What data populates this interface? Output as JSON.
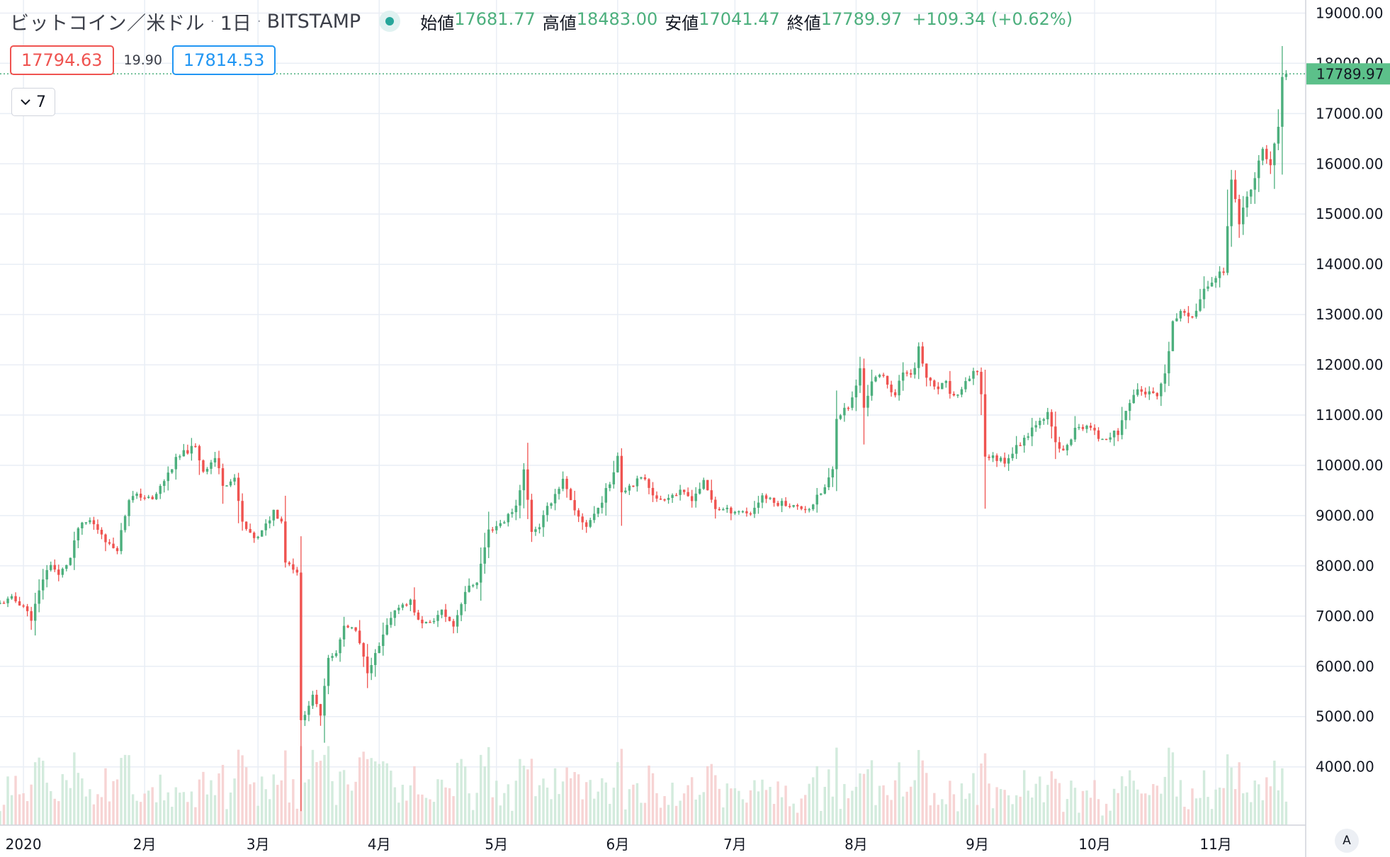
{
  "header": {
    "symbol": "ビットコイン／米ドル",
    "interval": "1日",
    "exchange": "BITSTAMP",
    "open_label": "始値",
    "open": "17681.77",
    "high_label": "高値",
    "high": "18483.00",
    "low_label": "安値",
    "low": "17041.47",
    "close_label": "終値",
    "close": "17789.97",
    "change": "+109.34 (+0.62%)"
  },
  "trade": {
    "sell": "17794.63",
    "spread": "19.90",
    "buy": "17814.53"
  },
  "indicators_toggle": {
    "count": "7",
    "icon": "chevron-down-icon"
  },
  "scale_button": {
    "label": "A"
  },
  "colors": {
    "up": "#4caf7d",
    "down": "#ef5350",
    "grid": "#e9eef5",
    "last_price_bg": "#5cc08a"
  },
  "chart_data": {
    "type": "candlestick",
    "title": "",
    "y_ticks": [
      "19000.00",
      "18000.00",
      "17000.00",
      "16000.00",
      "15000.00",
      "14000.00",
      "13000.00",
      "12000.00",
      "11000.00",
      "10000.00",
      "9000.00",
      "8000.00",
      "7000.00",
      "6000.00",
      "5000.00",
      "4000.00"
    ],
    "x_labels": [
      {
        "label": "2020",
        "date": "2020-01-01"
      },
      {
        "label": "2月",
        "date": "2020-02-01"
      },
      {
        "label": "3月",
        "date": "2020-03-01"
      },
      {
        "label": "4月",
        "date": "2020-04-01"
      },
      {
        "label": "5月",
        "date": "2020-05-01"
      },
      {
        "label": "6月",
        "date": "2020-06-01"
      },
      {
        "label": "7月",
        "date": "2020-07-01"
      },
      {
        "label": "8月",
        "date": "2020-08-01"
      },
      {
        "label": "9月",
        "date": "2020-09-01"
      },
      {
        "label": "10月",
        "date": "2020-10-01"
      },
      {
        "label": "11月",
        "date": "2020-11-01"
      }
    ],
    "x_range": [
      "2019-12-26",
      "2020-11-24"
    ],
    "y_range": [
      2840,
      19260
    ],
    "grid": true,
    "last_price": "17789.97",
    "price_path": [
      {
        "date": "2019-12-26",
        "close": 7250
      },
      {
        "date": "2019-12-29",
        "close": 7350
      },
      {
        "date": "2020-01-01",
        "close": 7200
      },
      {
        "date": "2020-01-03",
        "close": 6950
      },
      {
        "date": "2020-01-06",
        "close": 7750
      },
      {
        "date": "2020-01-08",
        "close": 8050
      },
      {
        "date": "2020-01-10",
        "close": 7800
      },
      {
        "date": "2020-01-13",
        "close": 8150
      },
      {
        "date": "2020-01-15",
        "close": 8750
      },
      {
        "date": "2020-01-18",
        "close": 8900
      },
      {
        "date": "2020-01-21",
        "close": 8650
      },
      {
        "date": "2020-01-23",
        "close": 8400
      },
      {
        "date": "2020-01-25",
        "close": 8350
      },
      {
        "date": "2020-01-28",
        "close": 9350
      },
      {
        "date": "2020-01-31",
        "close": 9400
      },
      {
        "date": "2020-02-03",
        "close": 9300
      },
      {
        "date": "2020-02-06",
        "close": 9700
      },
      {
        "date": "2020-02-09",
        "close": 10100
      },
      {
        "date": "2020-02-12",
        "close": 10300
      },
      {
        "date": "2020-02-14",
        "close": 10350
      },
      {
        "date": "2020-02-16",
        "close": 9900
      },
      {
        "date": "2020-02-19",
        "close": 10150
      },
      {
        "date": "2020-02-21",
        "close": 9650
      },
      {
        "date": "2020-02-24",
        "close": 9700
      },
      {
        "date": "2020-02-26",
        "close": 8850
      },
      {
        "date": "2020-02-28",
        "close": 8600
      },
      {
        "date": "2020-03-01",
        "close": 8550
      },
      {
        "date": "2020-03-03",
        "close": 8800
      },
      {
        "date": "2020-03-05",
        "close": 9100
      },
      {
        "date": "2020-03-07",
        "close": 8900
      },
      {
        "date": "2020-03-08",
        "close": 8100
      },
      {
        "date": "2020-03-11",
        "close": 7900
      },
      {
        "date": "2020-03-12",
        "close": 4900
      },
      {
        "date": "2020-03-15",
        "close": 5400
      },
      {
        "date": "2020-03-17",
        "close": 5050
      },
      {
        "date": "2020-03-19",
        "close": 6200
      },
      {
        "date": "2020-03-21",
        "close": 6250
      },
      {
        "date": "2020-03-23",
        "close": 6800
      },
      {
        "date": "2020-03-26",
        "close": 6700
      },
      {
        "date": "2020-03-29",
        "close": 5900
      },
      {
        "date": "2020-04-01",
        "close": 6400
      },
      {
        "date": "2020-04-03",
        "close": 6800
      },
      {
        "date": "2020-04-06",
        "close": 7200
      },
      {
        "date": "2020-04-09",
        "close": 7300
      },
      {
        "date": "2020-04-11",
        "close": 6900
      },
      {
        "date": "2020-04-14",
        "close": 6850
      },
      {
        "date": "2020-04-17",
        "close": 7100
      },
      {
        "date": "2020-04-20",
        "close": 6800
      },
      {
        "date": "2020-04-23",
        "close": 7500
      },
      {
        "date": "2020-04-26",
        "close": 7700
      },
      {
        "date": "2020-04-29",
        "close": 8700
      },
      {
        "date": "2020-05-01",
        "close": 8800
      },
      {
        "date": "2020-05-03",
        "close": 8900
      },
      {
        "date": "2020-05-06",
        "close": 9200
      },
      {
        "date": "2020-05-08",
        "close": 9900
      },
      {
        "date": "2020-05-10",
        "close": 8700
      },
      {
        "date": "2020-05-12",
        "close": 8800
      },
      {
        "date": "2020-05-15",
        "close": 9300
      },
      {
        "date": "2020-05-18",
        "close": 9700
      },
      {
        "date": "2020-05-21",
        "close": 9050
      },
      {
        "date": "2020-05-24",
        "close": 8800
      },
      {
        "date": "2020-05-27",
        "close": 9150
      },
      {
        "date": "2020-05-30",
        "close": 9650
      },
      {
        "date": "2020-06-01",
        "close": 10200
      },
      {
        "date": "2020-06-02",
        "close": 9500
      },
      {
        "date": "2020-06-05",
        "close": 9650
      },
      {
        "date": "2020-06-08",
        "close": 9750
      },
      {
        "date": "2020-06-11",
        "close": 9300
      },
      {
        "date": "2020-06-14",
        "close": 9400
      },
      {
        "date": "2020-06-17",
        "close": 9450
      },
      {
        "date": "2020-06-20",
        "close": 9350
      },
      {
        "date": "2020-06-23",
        "close": 9650
      },
      {
        "date": "2020-06-26",
        "close": 9150
      },
      {
        "date": "2020-06-29",
        "close": 9100
      },
      {
        "date": "2020-07-02",
        "close": 9100
      },
      {
        "date": "2020-07-05",
        "close": 9050
      },
      {
        "date": "2020-07-08",
        "close": 9400
      },
      {
        "date": "2020-07-11",
        "close": 9250
      },
      {
        "date": "2020-07-14",
        "close": 9250
      },
      {
        "date": "2020-07-17",
        "close": 9150
      },
      {
        "date": "2020-07-20",
        "close": 9150
      },
      {
        "date": "2020-07-22",
        "close": 9350
      },
      {
        "date": "2020-07-24",
        "close": 9550
      },
      {
        "date": "2020-07-26",
        "close": 9900
      },
      {
        "date": "2020-07-27",
        "close": 11000
      },
      {
        "date": "2020-07-29",
        "close": 11100
      },
      {
        "date": "2020-07-31",
        "close": 11300
      },
      {
        "date": "2020-08-02",
        "close": 11900
      },
      {
        "date": "2020-08-03",
        "close": 11150
      },
      {
        "date": "2020-08-05",
        "close": 11700
      },
      {
        "date": "2020-08-08",
        "close": 11750
      },
      {
        "date": "2020-08-11",
        "close": 11400
      },
      {
        "date": "2020-08-13",
        "close": 11850
      },
      {
        "date": "2020-08-16",
        "close": 11900
      },
      {
        "date": "2020-08-17",
        "close": 12300
      },
      {
        "date": "2020-08-19",
        "close": 11750
      },
      {
        "date": "2020-08-21",
        "close": 11500
      },
      {
        "date": "2020-08-24",
        "close": 11600
      },
      {
        "date": "2020-08-26",
        "close": 11350
      },
      {
        "date": "2020-08-29",
        "close": 11600
      },
      {
        "date": "2020-09-01",
        "close": 11900
      },
      {
        "date": "2020-09-02",
        "close": 11400
      },
      {
        "date": "2020-09-03",
        "close": 10200
      },
      {
        "date": "2020-09-05",
        "close": 10150
      },
      {
        "date": "2020-09-08",
        "close": 10100
      },
      {
        "date": "2020-09-11",
        "close": 10350
      },
      {
        "date": "2020-09-14",
        "close": 10650
      },
      {
        "date": "2020-09-17",
        "close": 10950
      },
      {
        "date": "2020-09-19",
        "close": 11000
      },
      {
        "date": "2020-09-21",
        "close": 10450
      },
      {
        "date": "2020-09-23",
        "close": 10250
      },
      {
        "date": "2020-09-26",
        "close": 10700
      },
      {
        "date": "2020-09-29",
        "close": 10800
      },
      {
        "date": "2020-10-02",
        "close": 10550
      },
      {
        "date": "2020-10-05",
        "close": 10600
      },
      {
        "date": "2020-10-07",
        "close": 10650
      },
      {
        "date": "2020-10-10",
        "close": 11300
      },
      {
        "date": "2020-10-12",
        "close": 11500
      },
      {
        "date": "2020-10-14",
        "close": 11450
      },
      {
        "date": "2020-10-17",
        "close": 11350
      },
      {
        "date": "2020-10-19",
        "close": 11750
      },
      {
        "date": "2020-10-21",
        "close": 12850
      },
      {
        "date": "2020-10-24",
        "close": 13050
      },
      {
        "date": "2020-10-26",
        "close": 13000
      },
      {
        "date": "2020-10-28",
        "close": 13300
      },
      {
        "date": "2020-10-30",
        "close": 13600
      },
      {
        "date": "2020-11-01",
        "close": 13750
      },
      {
        "date": "2020-11-03",
        "close": 13900
      },
      {
        "date": "2020-11-05",
        "close": 15600
      },
      {
        "date": "2020-11-07",
        "close": 14900
      },
      {
        "date": "2020-11-09",
        "close": 15300
      },
      {
        "date": "2020-11-11",
        "close": 15700
      },
      {
        "date": "2020-11-13",
        "close": 16300
      },
      {
        "date": "2020-11-15",
        "close": 15950
      },
      {
        "date": "2020-11-17",
        "close": 16700
      },
      {
        "date": "2020-11-18",
        "close": 17650
      },
      {
        "date": "2020-11-19",
        "close": 17789.97
      }
    ]
  }
}
